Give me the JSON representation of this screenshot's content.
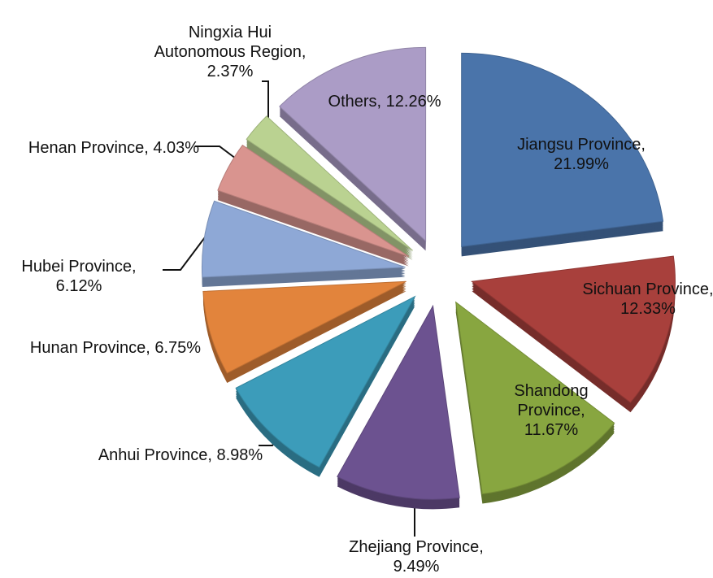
{
  "chart_data": {
    "type": "pie",
    "labels": [
      "Jiangsu Province, 21.99%",
      "Sichuan Province, 12.33%",
      "Shandong Province, 11.67%",
      "Zhejiang Province, 9.49%",
      "Anhui Province, 8.98%",
      "Hunan Province, 6.75%",
      "Hubei Province, 6.12%",
      "Henan Province, 4.03%",
      "Ningxia Hui Autonomous Region, 2.37%",
      "Others, 12.26%"
    ],
    "values": [
      21.99,
      12.33,
      11.67,
      9.49,
      8.98,
      6.75,
      6.12,
      4.03,
      2.37,
      12.26
    ],
    "colors": [
      "#4a74aa",
      "#a8403c",
      "#88a640",
      "#6c5290",
      "#3c9cba",
      "#e2843c",
      "#8ea8d6",
      "#d9948f",
      "#bad291",
      "#ab9cc6"
    ]
  }
}
